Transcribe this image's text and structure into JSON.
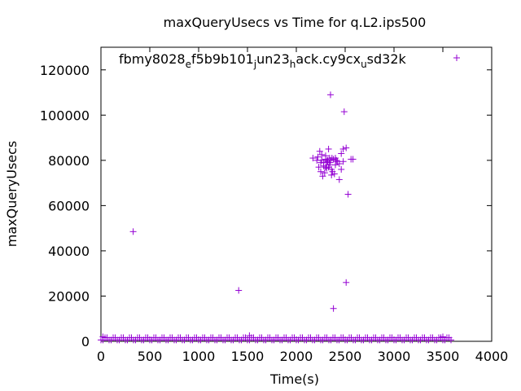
{
  "chart_data": {
    "type": "scatter",
    "title": "maxQueryUsecs vs Time for q.L2.ips500",
    "xlabel": "Time(s)",
    "ylabel": "maxQueryUsecs",
    "xlim": [
      0,
      4000
    ],
    "ylim": [
      0,
      130000
    ],
    "x_ticks": [
      0,
      500,
      1000,
      1500,
      2000,
      2500,
      3000,
      3500,
      4000
    ],
    "y_ticks": [
      0,
      20000,
      40000,
      60000,
      80000,
      100000,
      120000
    ],
    "grid": false,
    "legend_position": "top",
    "marker": "+",
    "color": "#9400d3",
    "series": [
      {
        "name": "fbmy8028_ef5b9b101_jun23_hack.cy9cx_usd32k",
        "points": [
          [
            330,
            48500
          ],
          [
            1410,
            22500
          ],
          [
            1520,
            2500
          ],
          [
            20,
            2000
          ],
          [
            3500,
            2000
          ],
          [
            2350,
            109000
          ],
          [
            2490,
            101500
          ],
          [
            2530,
            65000
          ],
          [
            2510,
            26000
          ],
          [
            2380,
            14500
          ],
          [
            2170,
            81000
          ],
          [
            2220,
            81500
          ],
          [
            2240,
            84000
          ],
          [
            2260,
            82500
          ],
          [
            2280,
            79000
          ],
          [
            2300,
            77000
          ],
          [
            2320,
            80000
          ],
          [
            2340,
            78000
          ],
          [
            2360,
            76000
          ],
          [
            2380,
            80500
          ],
          [
            2400,
            81000
          ],
          [
            2420,
            79500
          ],
          [
            2440,
            78500
          ],
          [
            2460,
            83000
          ],
          [
            2480,
            85000
          ],
          [
            2230,
            77000
          ],
          [
            2250,
            75000
          ],
          [
            2270,
            73000
          ],
          [
            2290,
            74500
          ],
          [
            2310,
            76500
          ],
          [
            2330,
            85000
          ],
          [
            2350,
            80000
          ],
          [
            2370,
            75000
          ],
          [
            2390,
            74000
          ],
          [
            2410,
            80000
          ],
          [
            2440,
            71500
          ],
          [
            2460,
            76000
          ],
          [
            2480,
            79500
          ],
          [
            2510,
            85500
          ],
          [
            2560,
            80500
          ],
          [
            2580,
            80500
          ],
          [
            2300,
            80500
          ],
          [
            2320,
            79500
          ],
          [
            2340,
            81000
          ],
          [
            2360,
            73500
          ],
          [
            2250,
            79000
          ],
          [
            2260,
            80000
          ],
          [
            2280,
            77500
          ],
          [
            2300,
            82000
          ],
          [
            2400,
            78000
          ],
          [
            2210,
            80000
          ],
          [
            2345,
            79000
          ],
          [
            2365,
            81000
          ],
          [
            2330,
            77000
          ],
          [
            2310,
            79000
          ]
        ],
        "baseline_band": {
          "x_range": [
            0,
            3600
          ],
          "y_range": [
            0,
            2000
          ]
        }
      }
    ]
  }
}
